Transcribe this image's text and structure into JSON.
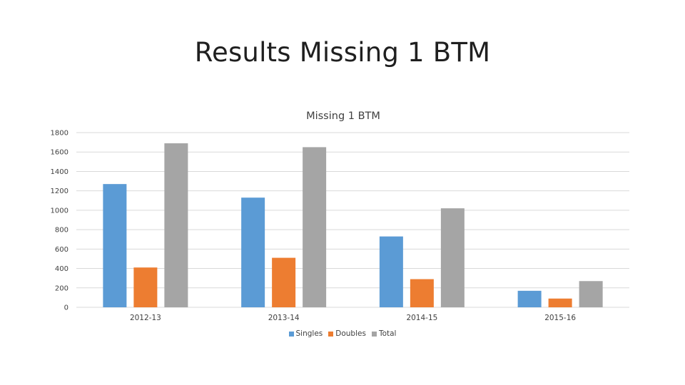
{
  "slide": {
    "title": "Results Missing 1 BTM"
  },
  "colors": {
    "Singles": "#5b9bd5",
    "Doubles": "#ed7d31",
    "Total": "#a5a5a5",
    "grid": "#d9d9d9",
    "text": "#404040"
  },
  "chart_data": {
    "type": "bar",
    "title": "Missing 1 BTM",
    "xlabel": "",
    "ylabel": "",
    "categories": [
      "2012-13",
      "2013-14",
      "2014-15",
      "2015-16"
    ],
    "series": [
      {
        "name": "Singles",
        "values": [
          1270,
          1130,
          730,
          170
        ]
      },
      {
        "name": "Doubles",
        "values": [
          410,
          510,
          290,
          90
        ]
      },
      {
        "name": "Total",
        "values": [
          1690,
          1650,
          1020,
          270
        ]
      }
    ],
    "ylim": [
      0,
      1800
    ],
    "yticks": [
      "0",
      "200",
      "400",
      "600",
      "800",
      "1000",
      "1200",
      "1400",
      "1600",
      "1800"
    ],
    "grid": true,
    "legend_position": "bottom"
  }
}
